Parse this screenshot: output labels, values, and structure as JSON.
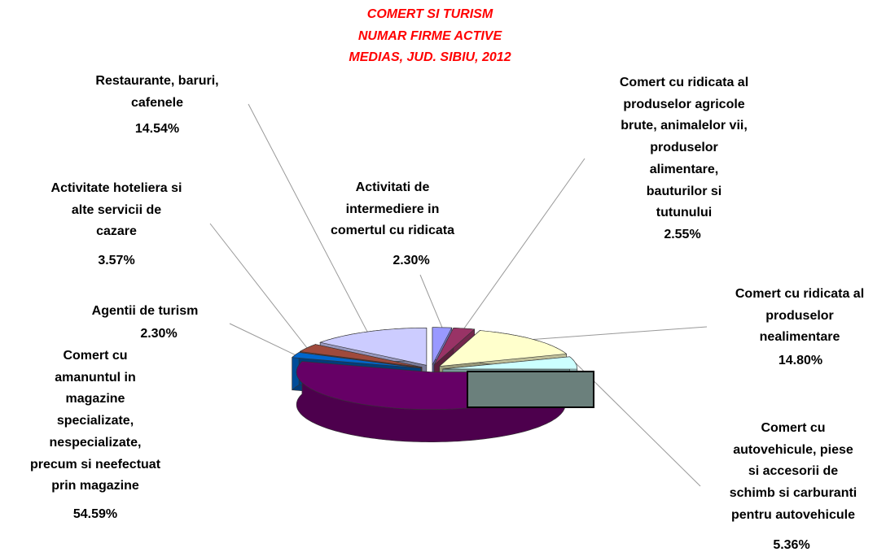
{
  "chart_data": {
    "type": "pie",
    "title": "COMERT SI TURISM\nNUMAR FIRME ACTIVE\nMEDIAS, JUD. SIBIU, 2012",
    "categories": [
      "Activitati de\nintermediere in\ncomertul cu ridicata",
      "Comert cu ridicata al\nproduselor agricole\nbrute, animalelor vii,\nproduselor\nalimentare,\nbauturilor si\ntutunului",
      "Comert cu ridicata al\nproduselor\nnealimentare",
      "Comert cu\nautovehicule, piese\nsi accesorii de\nschimb si carburanti\npentru autovehicule",
      "Comert cu\namanuntul in\nmagazine\nspecializate,\nnespecializate,\nprecum si neefectuat\nprin magazine",
      "Agentii de turism",
      "Activitate hoteliera si\nalte servicii de\ncazare",
      "Restaurante, baruri,\ncafenele"
    ],
    "values": [
      2.3,
      2.55,
      14.8,
      5.36,
      54.59,
      2.3,
      3.57,
      14.54
    ],
    "value_labels": [
      "2.30%",
      "2.55%",
      "14.80%",
      "5.36%",
      "54.59%",
      "2.30%",
      "3.57%",
      "14.54%"
    ],
    "colors": [
      "#9999ff",
      "#993366",
      "#ffffcc",
      "#ccffff",
      "#660066",
      "#0066cc",
      "#a04a3c",
      "#ccccff"
    ]
  }
}
